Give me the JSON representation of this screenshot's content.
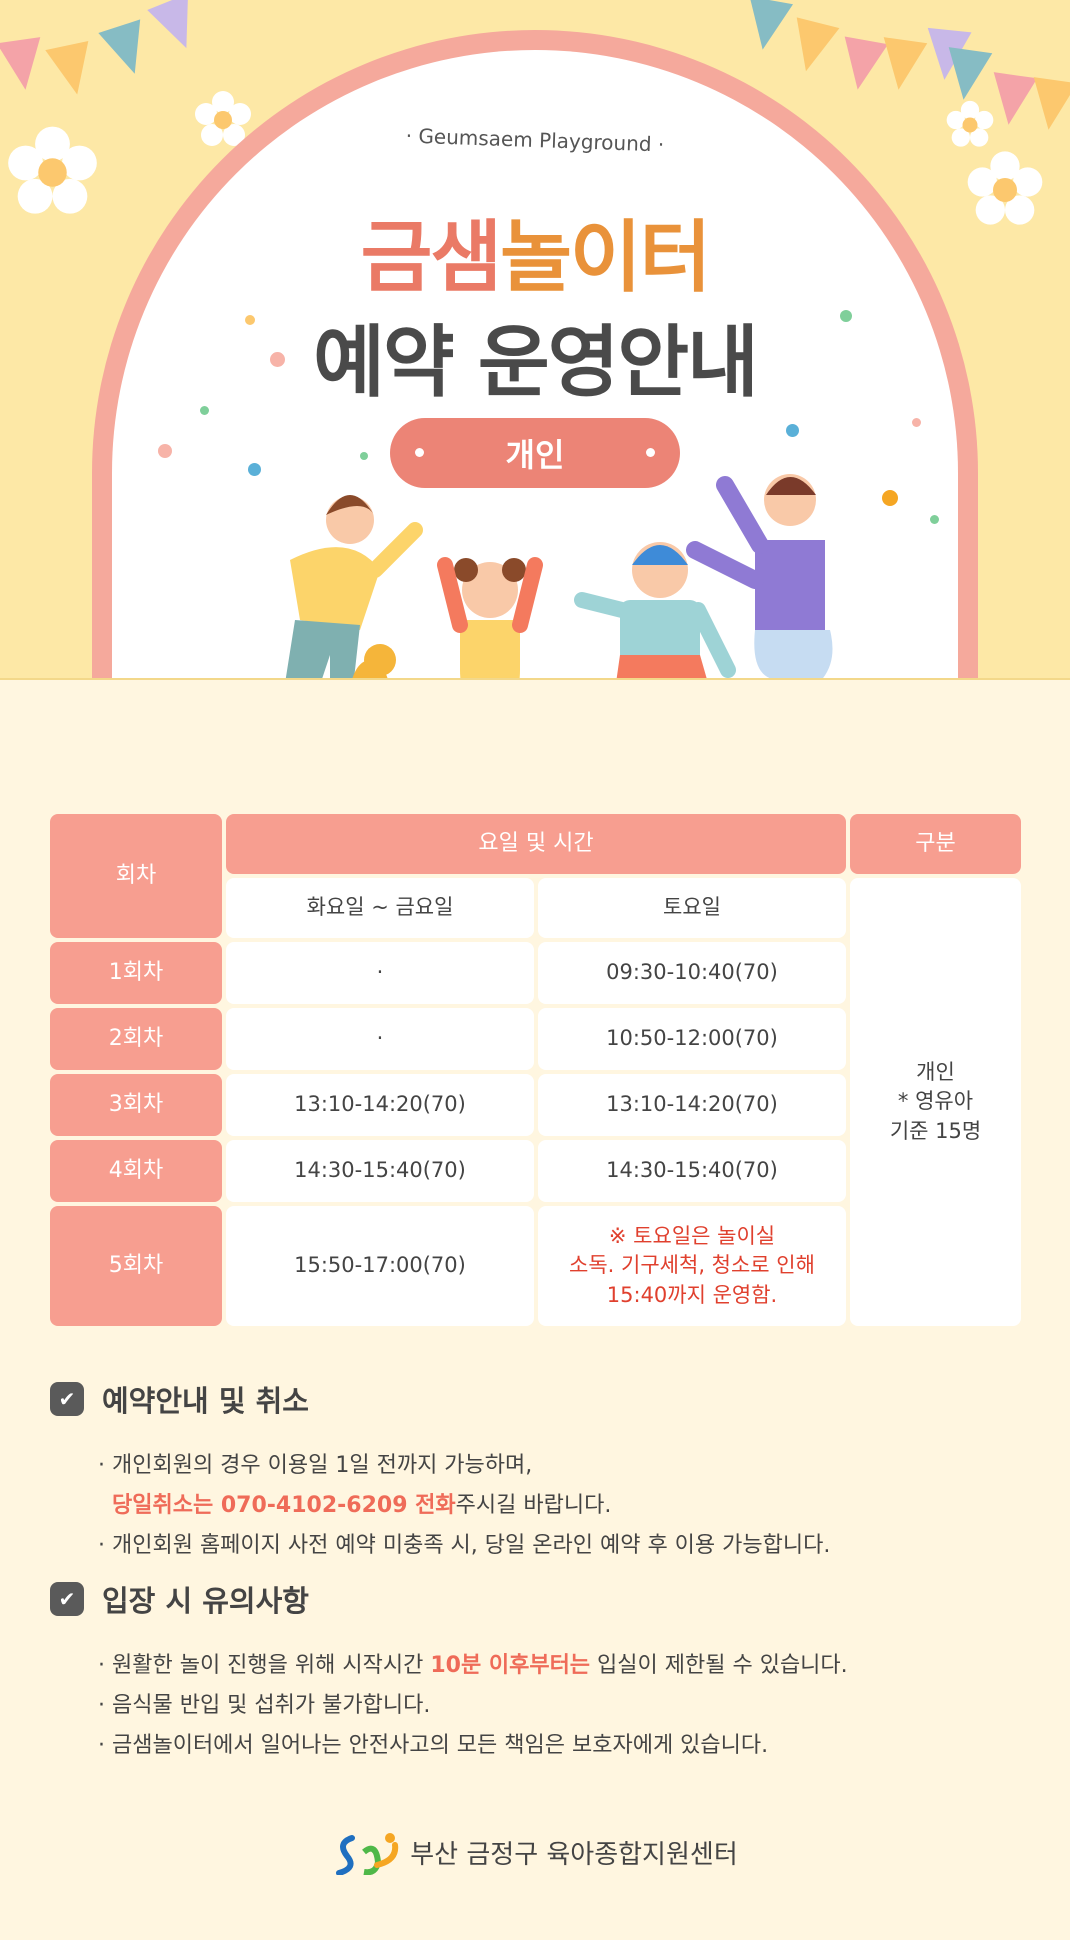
{
  "header": {
    "subtitle": "· Geumsaem Playground ·",
    "title_part1": "금샘",
    "title_part2": "놀이터",
    "title_line2": "예약 운영안내",
    "badge": "개인"
  },
  "table": {
    "headers": {
      "session": "회차",
      "day_time": "요일 및 시간",
      "category": "구분"
    },
    "subheaders": {
      "weekday": "화요일 ~ 금요일",
      "saturday": "토요일"
    },
    "rows": [
      {
        "session": "1회차",
        "weekday": "·",
        "saturday": "09:30-10:40(70)"
      },
      {
        "session": "2회차",
        "weekday": "·",
        "saturday": "10:50-12:00(70)"
      },
      {
        "session": "3회차",
        "weekday": "13:10-14:20(70)",
        "saturday": "13:10-14:20(70)"
      },
      {
        "session": "4회차",
        "weekday": "14:30-15:40(70)",
        "saturday": "14:30-15:40(70)"
      },
      {
        "session": "5회차",
        "weekday": "15:50-17:00(70)",
        "saturday_note": [
          "※ 토요일은 놀이실",
          "소독. 기구세척, 청소로 인해",
          "15:40까지 운영함."
        ]
      }
    ],
    "category": [
      "개인",
      "* 영유아",
      "기준 15명"
    ]
  },
  "sections": [
    {
      "title": "예약안내 및 취소",
      "items": [
        {
          "text": "· 개인회원의 경우 이용일 1일 전까지 가능하며,",
          "hl": "당일취소는 070-4102-6209 전화",
          "after": "주시길 바랍니다."
        },
        {
          "text": "· 개인회원 홈페이지 사전 예약 미충족 시, 당일 온라인 예약 후 이용 가능합니다."
        }
      ]
    },
    {
      "title": "입장 시 유의사항",
      "items": [
        {
          "before": "· 원활한 놀이 진행을 위해 시작시간 ",
          "hl": "10분 이후부터는",
          "after": " 입실이 제한될 수 있습니다."
        },
        {
          "text": "· 음식물 반입 및 섭취가 불가합니다."
        },
        {
          "text": "· 금샘놀이터에서 일어나는 안전사고의 모든 책임은 보호자에게 있습니다."
        }
      ]
    }
  ],
  "footer": {
    "org": "부산 금정구 육아종합지원센터"
  },
  "colors": {
    "accent": "#f79e90",
    "badge": "#ec8476",
    "highlight": "#ef6b58",
    "note_red": "#e0402e",
    "top_bg": "#fde8a6",
    "page_bg": "#fff6e0"
  }
}
